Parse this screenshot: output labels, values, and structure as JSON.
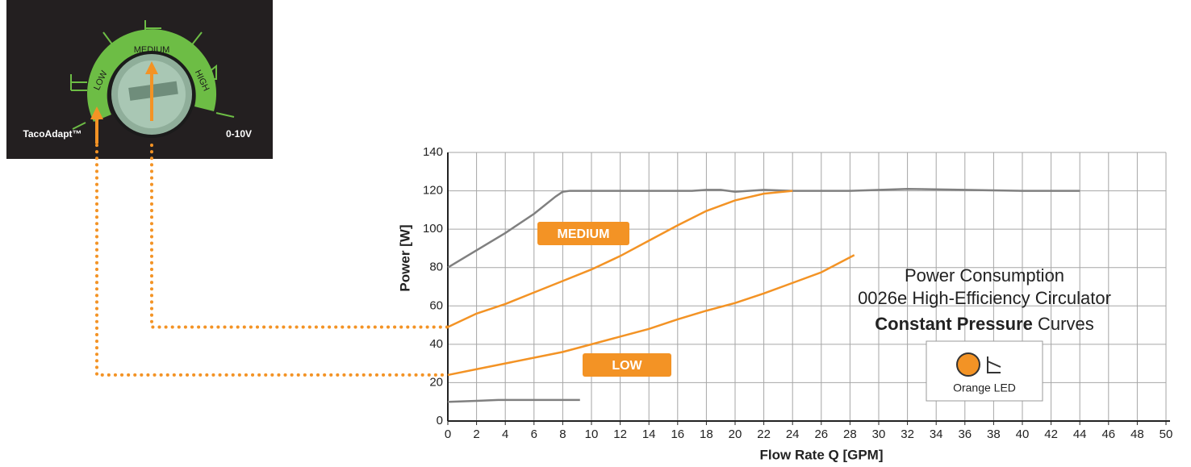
{
  "dial": {
    "brand": "TacoAdapt™",
    "settings": [
      "LOW",
      "MEDIUM",
      "HIGH"
    ],
    "analog": "0-10V"
  },
  "chart_data": {
    "type": "line",
    "title": "Power Consumption",
    "subtitle": "0026e High-Efficiency Circulator",
    "curve_type": "Constant Pressure",
    "curve_suffix": "Curves",
    "led_label": "Orange LED",
    "x_label": "Flow Rate Q [GPM]",
    "y_label": "Power [W]",
    "xlim": [
      0,
      50
    ],
    "ylim": [
      0,
      140
    ],
    "xticks": [
      0,
      2,
      4,
      6,
      8,
      10,
      12,
      14,
      16,
      18,
      20,
      22,
      24,
      26,
      28,
      30,
      32,
      34,
      36,
      38,
      40,
      42,
      44,
      46,
      48,
      50
    ],
    "yticks": [
      0,
      20,
      40,
      60,
      80,
      100,
      120,
      140
    ],
    "grid": true,
    "series": [
      {
        "color": "#808080",
        "x": [
          0,
          2,
          4,
          6,
          7.5,
          8,
          8.5,
          10,
          14,
          17,
          18,
          19,
          20,
          22,
          24,
          26,
          28,
          32,
          36,
          40,
          44
        ],
        "values": [
          80,
          89,
          98,
          108,
          117,
          119.5,
          120,
          120,
          120,
          120,
          120.5,
          120.5,
          119.5,
          120.5,
          120,
          120,
          120,
          121,
          120.5,
          120,
          120
        ]
      },
      {
        "name": "MEDIUM",
        "color": "#f39325",
        "x": [
          0,
          2,
          4,
          6,
          8,
          10,
          12,
          14,
          16,
          18,
          20,
          22,
          24
        ],
        "values": [
          49,
          56,
          61,
          67,
          73,
          79,
          86,
          94,
          102,
          109.5,
          115,
          118.5,
          120
        ]
      },
      {
        "name": "LOW",
        "color": "#f39325",
        "x": [
          0,
          2,
          4,
          6,
          8,
          10,
          12,
          14,
          16,
          18,
          20,
          22,
          24,
          26,
          28.3
        ],
        "values": [
          24,
          27,
          30,
          33,
          36,
          40,
          44,
          48,
          53,
          57.5,
          61.5,
          66.5,
          72,
          77.5,
          86.5
        ]
      },
      {
        "color": "#808080",
        "x": [
          0,
          2,
          3.5,
          6,
          9.2
        ],
        "values": [
          10,
          10.5,
          11,
          11,
          11
        ]
      }
    ]
  }
}
